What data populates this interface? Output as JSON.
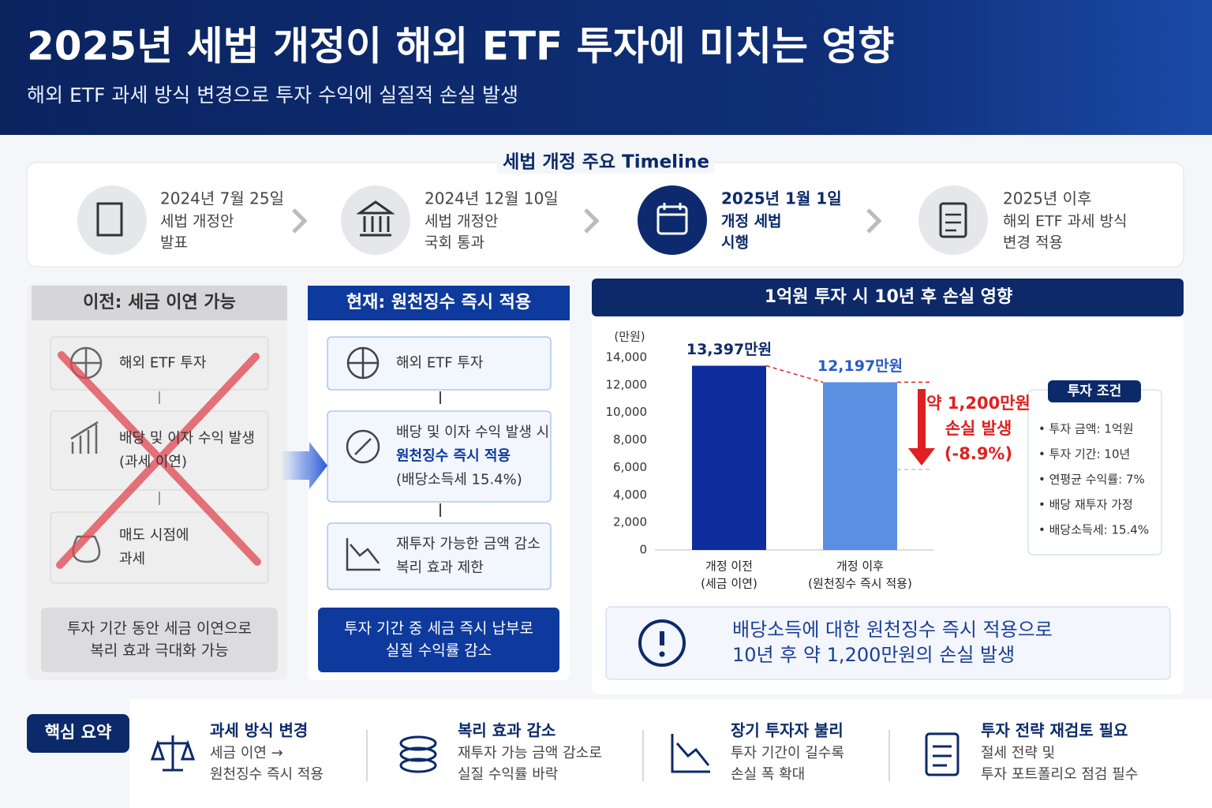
{
  "header": {
    "title": "2025년 세법 개정이 해외 ETF 투자에 미치는 영향",
    "subtitle": "해외 ETF 과세 방식 변경으로 투자 수익에 실질적 손실 발생"
  },
  "timeline": {
    "title": "세법 개정 주요 Timeline",
    "steps": [
      {
        "date": "2024년 7월 25일",
        "lines": [
          "세법 개정안",
          "발표"
        ]
      },
      {
        "date": "2024년 12월 10일",
        "lines": [
          "세법 개정안",
          "국회 통과"
        ]
      },
      {
        "date": "2025년 1월 1일",
        "lines": [
          "개정 세법",
          "시행"
        ]
      },
      {
        "date": "2025년 이후",
        "lines": [
          "해외 ETF 과세 방식",
          "변경 적용"
        ]
      }
    ]
  },
  "before": {
    "title": "이전: 세금 이연 가능",
    "steps": [
      {
        "lines": [
          "해외 ETF 투자"
        ]
      },
      {
        "lines": [
          "배당 및 이자 수익 발생",
          "(과세 이연)"
        ]
      },
      {
        "lines": [
          "매도 시점에",
          "과세"
        ]
      }
    ],
    "summary": [
      "투자 기간 동안 세금 이연으로",
      "복리 효과 극대화 가능"
    ]
  },
  "after": {
    "title": "현재: 원천징수 즉시 적용",
    "steps": [
      {
        "lines": [
          "해외 ETF 투자"
        ]
      },
      {
        "lines": [
          "배당 및 이자 수익 발생 시",
          "원천징수 즉시 적용",
          "(배당소득세 15.4%)"
        ]
      },
      {
        "lines": [
          "재투자 가능한 금액 감소",
          "복리 효과 제한"
        ]
      }
    ],
    "summary": [
      "투자 기간 중 세금 즉시 납부로",
      "실질 수익률 감소"
    ]
  },
  "chart_data": {
    "type": "bar",
    "title": "1억원 투자 시 10년 후 손실 영향",
    "y_label": "(만원)",
    "categories": [
      "개정 이전",
      "개정 이후"
    ],
    "category_notes": [
      "(세금 이연)",
      "(원천징수 즉시 적용)"
    ],
    "values": [
      13397,
      12197
    ],
    "value_labels": [
      "13,397만원",
      "12,197만원"
    ],
    "colors": [
      "#0d2d9c",
      "#5b8fe2"
    ],
    "ylim": [
      0,
      14000
    ],
    "yticks": [
      0,
      {
        "value": 2000,
        "label": "2,000"
      },
      {
        "value": 4000,
        "label": "4,000"
      },
      {
        "value": 6000,
        "label": "6,000"
      },
      {
        "value": 8000,
        "label": "8,000"
      },
      {
        "value": 10000,
        "label": "10,000"
      },
      {
        "value": 12000,
        "label": "12,000"
      },
      {
        "value": 14000,
        "label": "14,000"
      }
    ],
    "grid": false,
    "annotation": [
      "약 1,200만원",
      "손실 발생",
      "(-8.9%)"
    ],
    "conditions": {
      "title": "투자 조건",
      "items": [
        "• 투자 금액: 1억원",
        "• 투자 기간: 10년",
        "• 연평균 수익률: 7%",
        "• 배당 재투자 가정",
        "• 배당소득세: 15.4%"
      ]
    }
  },
  "alert": {
    "lines": [
      "배당소득에 대한 원천징수 즉시 적용으로",
      "10년 후 약 1,200만원의 손실 발생"
    ]
  },
  "summary": {
    "label": "핵심 요약",
    "items": [
      {
        "title": "과세 방식 변경",
        "lines": [
          "세금 이연 →",
          "원천징수 즉시 적용"
        ]
      },
      {
        "title": "복리 효과 감소",
        "lines": [
          "재투자 가능 금액 감소로",
          "실질 수익률 바락"
        ]
      },
      {
        "title": "장기 투자자 불리",
        "lines": [
          "투자 기간이 길수록",
          "손실 폭 확대"
        ]
      },
      {
        "title": "투자 전략 재검토 필요",
        "lines": [
          "절세 전략 및",
          "투자 포트폴리오 점검 필수"
        ]
      }
    ]
  }
}
